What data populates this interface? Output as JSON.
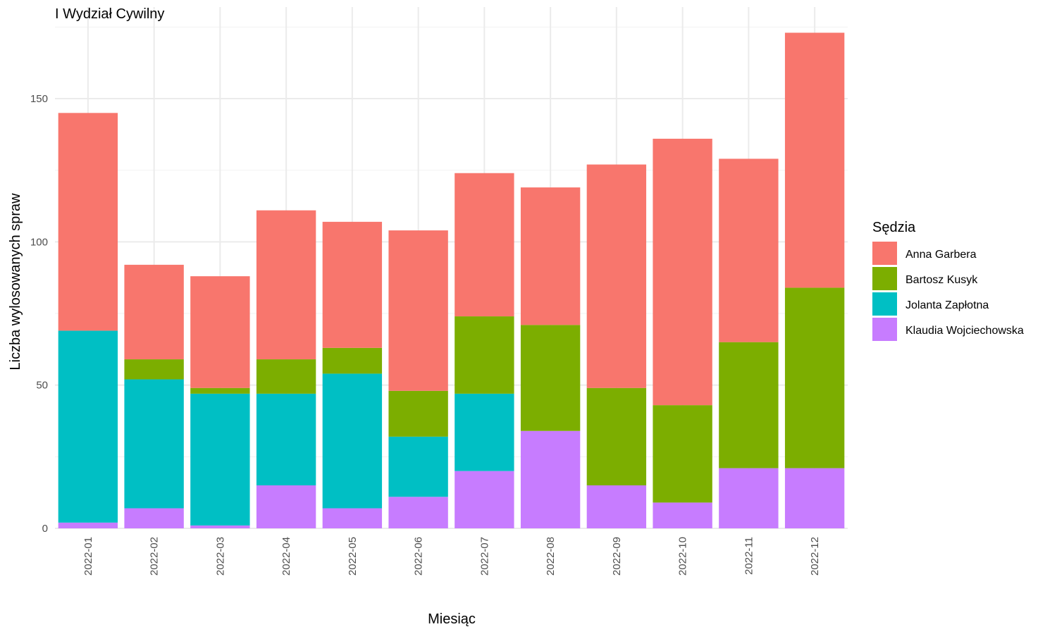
{
  "chart_data": {
    "type": "bar",
    "stacked": true,
    "title": "I Wydział Cywilny",
    "xlabel": "Miesiąc",
    "ylabel": "Liczba wylosowanych spraw",
    "ylim": [
      0,
      180
    ],
    "yticks": [
      0,
      50,
      100,
      150
    ],
    "grid": true,
    "legend_title": "Sędzia",
    "legend_position": "right",
    "categories": [
      "2022-01",
      "2022-02",
      "2022-03",
      "2022-04",
      "2022-05",
      "2022-06",
      "2022-07",
      "2022-08",
      "2022-09",
      "2022-10",
      "2022-11",
      "2022-12"
    ],
    "series": [
      {
        "name": "Klaudia Wojciechowska",
        "color": "#C77CFF",
        "values": [
          2,
          7,
          1,
          15,
          7,
          11,
          20,
          34,
          15,
          9,
          21,
          21
        ]
      },
      {
        "name": "Jolanta Zapłotna",
        "color": "#00BFC4",
        "values": [
          67,
          45,
          46,
          32,
          47,
          21,
          27,
          0,
          0,
          0,
          0,
          0
        ]
      },
      {
        "name": "Bartosz Kusyk",
        "color": "#7CAE00",
        "values": [
          0,
          7,
          2,
          12,
          9,
          16,
          27,
          37,
          34,
          34,
          44,
          63
        ]
      },
      {
        "name": "Anna Garbera",
        "color": "#F8766D",
        "values": [
          76,
          33,
          39,
          52,
          44,
          56,
          50,
          48,
          78,
          93,
          64,
          89
        ]
      }
    ],
    "legend_order": [
      "Anna Garbera",
      "Bartosz Kusyk",
      "Jolanta Zapłotna",
      "Klaudia Wojciechowska"
    ]
  }
}
